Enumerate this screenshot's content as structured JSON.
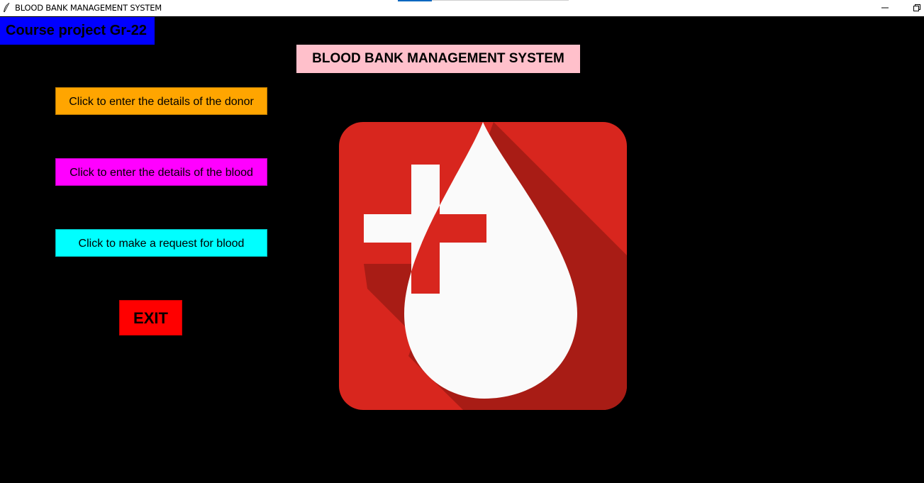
{
  "window": {
    "title": "BLOOD BANK MANAGEMENT SYSTEM",
    "app_icon": "feather-icon",
    "controls": [
      "minimize-icon",
      "restore-icon"
    ]
  },
  "course_label": "Course project Gr-22",
  "main_title": "BLOOD BANK MANAGEMENT SYSTEM",
  "buttons": {
    "donor": {
      "label": "Click to enter the details of the donor",
      "color": "#ffa500"
    },
    "blood": {
      "label": "Click to enter the details of the blood",
      "color": "#ff00ff"
    },
    "request": {
      "label": "Click to make a request for blood",
      "color": "#00ffff"
    },
    "exit": {
      "label": "EXIT",
      "color": "#ff0000"
    }
  },
  "logo": {
    "icon": "blood-drop-plus-icon",
    "background_color": "#d8261e",
    "shadow_color": "#a81c15",
    "drop_color": "#fafafa"
  },
  "colors": {
    "background": "#000000",
    "course_label_bg": "#0000ff",
    "title_bg": "#ffc0cb"
  }
}
